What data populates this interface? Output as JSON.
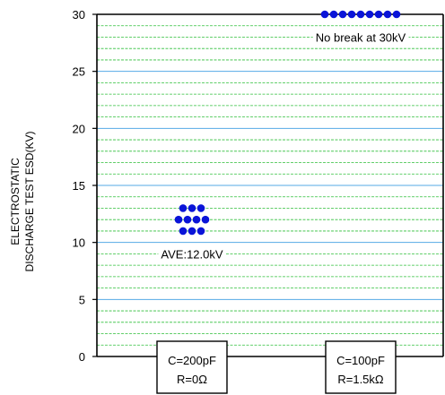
{
  "chart_data": {
    "type": "scatter",
    "ylabel_lines": [
      "ELECTROSTATIC",
      "DISCHARGE TEST ESD(KV)"
    ],
    "ylim": [
      0,
      30
    ],
    "yticks": [
      0,
      5,
      10,
      15,
      20,
      25,
      30
    ],
    "categories": [
      {
        "line1": "C=200pF",
        "line2": "R=0Ω"
      },
      {
        "line1": "C=100pF",
        "line2": "R=1.5kΩ"
      }
    ],
    "series": [
      {
        "points": [
          {
            "category": 0,
            "offset": -1,
            "y": 13
          },
          {
            "category": 0,
            "offset": 0,
            "y": 13
          },
          {
            "category": 0,
            "offset": 1,
            "y": 13
          },
          {
            "category": 0,
            "offset": -1.5,
            "y": 12
          },
          {
            "category": 0,
            "offset": -0.5,
            "y": 12
          },
          {
            "category": 0,
            "offset": 0.5,
            "y": 12
          },
          {
            "category": 0,
            "offset": 1.5,
            "y": 12
          },
          {
            "category": 0,
            "offset": -1,
            "y": 11
          },
          {
            "category": 0,
            "offset": 0,
            "y": 11
          },
          {
            "category": 0,
            "offset": 1,
            "y": 11
          },
          {
            "category": 1,
            "offset": -4,
            "y": 30
          },
          {
            "category": 1,
            "offset": -3,
            "y": 30
          },
          {
            "category": 1,
            "offset": -2,
            "y": 30
          },
          {
            "category": 1,
            "offset": -1,
            "y": 30
          },
          {
            "category": 1,
            "offset": 0,
            "y": 30
          },
          {
            "category": 1,
            "offset": 1,
            "y": 30
          },
          {
            "category": 1,
            "offset": 2,
            "y": 30
          },
          {
            "category": 1,
            "offset": 3,
            "y": 30
          },
          {
            "category": 1,
            "offset": 4,
            "y": 30
          }
        ]
      }
    ],
    "annotations": [
      {
        "text": "AVE:12.0kV",
        "category": 0,
        "y": 9
      },
      {
        "text": "No break at 30kV",
        "category": 1,
        "y": 28
      }
    ],
    "grid": true,
    "colors": {
      "major_grid": "#56a9e6",
      "minor_grid": "#2fbf3a",
      "marker": "#0a14d8",
      "axis": "#000000"
    }
  }
}
